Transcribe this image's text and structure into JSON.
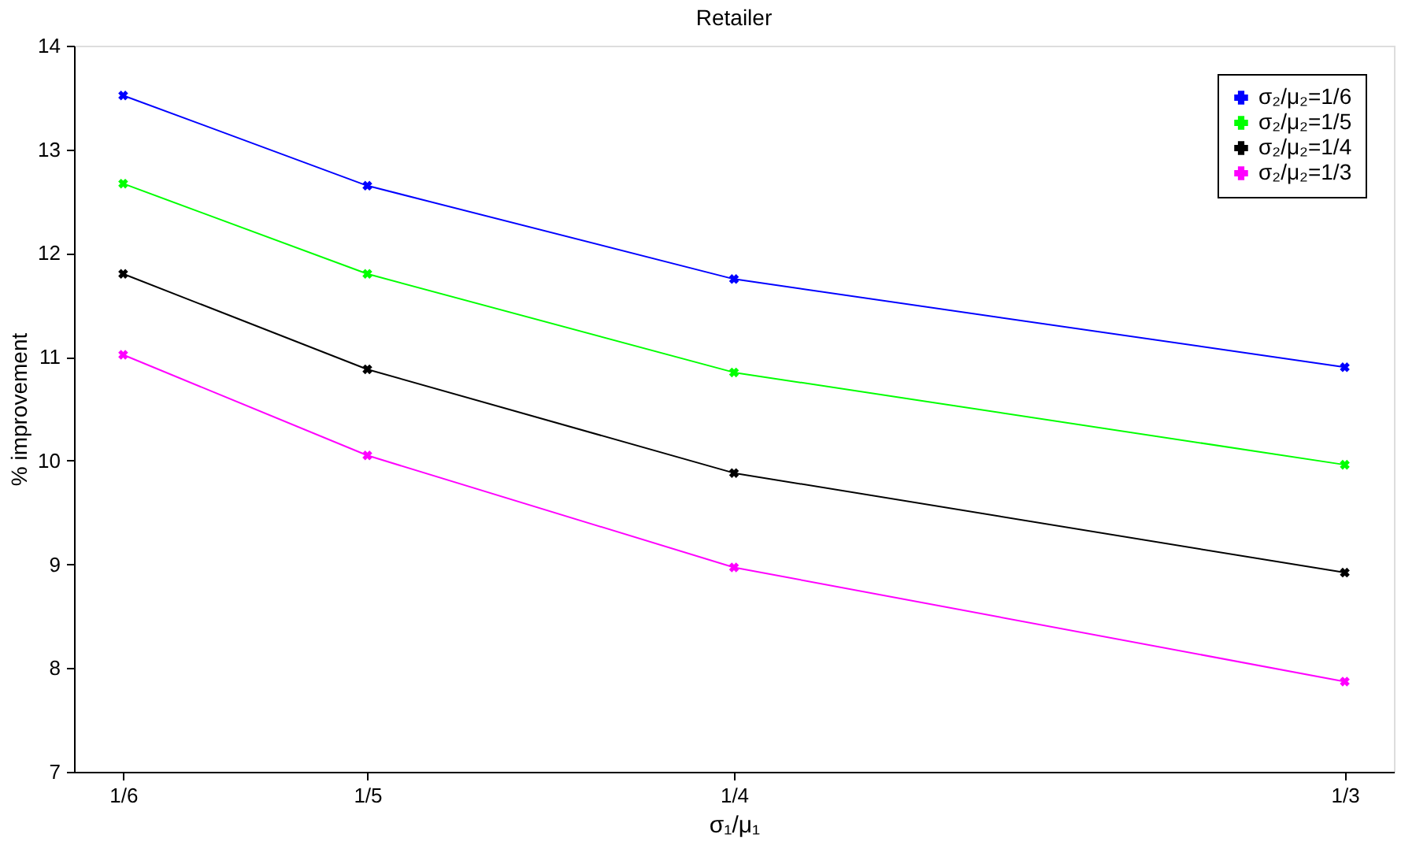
{
  "chart_data": {
    "type": "line",
    "title": "Retailer",
    "xlabel": "σ₁/μ₁",
    "ylabel": "% improvement",
    "x": [
      0.1667,
      0.2,
      0.25,
      0.3333
    ],
    "xlim": [
      0.16,
      0.34
    ],
    "xticks": [
      {
        "value": 0.1667,
        "label": "1/6"
      },
      {
        "value": 0.2,
        "label": "1/5"
      },
      {
        "value": 0.25,
        "label": "1/4"
      },
      {
        "value": 0.3333,
        "label": "1/3"
      }
    ],
    "ylim": [
      7,
      14
    ],
    "yticks": [
      7,
      8,
      9,
      10,
      11,
      12,
      13,
      14
    ],
    "series": [
      {
        "name": "σ₂/μ₂=1/6",
        "color": "#0000ff",
        "values": [
          13.52,
          12.65,
          11.75,
          10.9
        ]
      },
      {
        "name": "σ₂/μ₂=1/5",
        "color": "#00ff00",
        "values": [
          12.67,
          11.8,
          10.85,
          9.96
        ]
      },
      {
        "name": "σ₂/μ₂=1/4",
        "color": "#000000",
        "values": [
          11.8,
          10.88,
          9.88,
          8.92
        ]
      },
      {
        "name": "σ₂/μ₂=1/3",
        "color": "#ff00ff",
        "values": [
          11.02,
          10.05,
          8.97,
          7.87
        ]
      }
    ],
    "legend": "top right",
    "marker": "cross",
    "line_style": "solid",
    "grid": false
  }
}
